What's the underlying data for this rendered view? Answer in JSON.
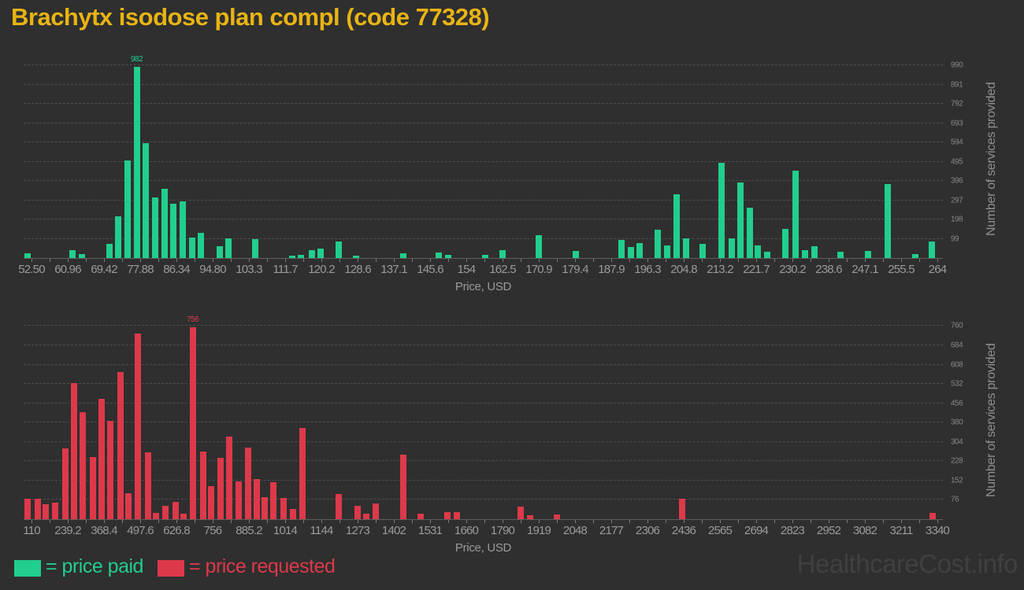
{
  "title": "Brachytx isodose plan compl (code 77328)",
  "watermark": "HealthcareCost.info",
  "colors": {
    "background": "#2f2f2f",
    "title": "#e8b414",
    "price_paid": "#21ce8d",
    "price_requested": "#dd394a",
    "axis_text": "#9a9a9a",
    "y_axis_text": "#868686",
    "gridline": "#4d4d4d"
  },
  "legend": {
    "items": [
      {
        "label": "= price paid",
        "color": "#21ce8d"
      },
      {
        "label": "= price requested",
        "color": "#dd394a"
      }
    ]
  },
  "chart_data": [
    {
      "type": "bar",
      "name": "price-paid-histogram",
      "series_name": "price paid",
      "color": "#21ce8d",
      "xlabel": "Price, USD",
      "ylabel": "Number of services provided",
      "peak_label": "982",
      "ymax_render": 1020,
      "x_tick_labels": [
        "52.50",
        "60.96",
        "69.42",
        "77.88",
        "86.34",
        "94.80",
        "103.3",
        "111.7",
        "120.2",
        "128.6",
        "137.1",
        "145.6",
        "154",
        "162.5",
        "170.9",
        "179.4",
        "187.9",
        "196.3",
        "204.8",
        "213.2",
        "221.7",
        "230.2",
        "238.6",
        "247.1",
        "255.5",
        "264"
      ],
      "y_ticks": [
        99,
        198,
        297,
        396,
        495,
        594,
        693,
        792,
        891,
        990
      ],
      "bars": [
        [
          0.4,
          26
        ],
        [
          5.3,
          39
        ],
        [
          6.3,
          20
        ],
        [
          9.3,
          72
        ],
        [
          10.3,
          215
        ],
        [
          11.3,
          500
        ],
        [
          12.3,
          982
        ],
        [
          13.3,
          592
        ],
        [
          14.3,
          310
        ],
        [
          15.3,
          355
        ],
        [
          16.3,
          280
        ],
        [
          17.3,
          290
        ],
        [
          18.3,
          105
        ],
        [
          19.3,
          130
        ],
        [
          21.3,
          60
        ],
        [
          22.3,
          100
        ],
        [
          25.2,
          98
        ],
        [
          29.2,
          13
        ],
        [
          30.2,
          17
        ],
        [
          31.4,
          39
        ],
        [
          32.3,
          47
        ],
        [
          34.3,
          87
        ],
        [
          36.2,
          11
        ],
        [
          41.3,
          25
        ],
        [
          45.2,
          30
        ],
        [
          46.2,
          15
        ],
        [
          50.2,
          18
        ],
        [
          52.1,
          40
        ],
        [
          56.0,
          118
        ],
        [
          60.1,
          35
        ],
        [
          65.0,
          92
        ],
        [
          66.1,
          58
        ],
        [
          67.0,
          75
        ],
        [
          69.0,
          145
        ],
        [
          70.0,
          66
        ],
        [
          71.0,
          326
        ],
        [
          72.1,
          100
        ],
        [
          73.9,
          73
        ],
        [
          75.9,
          491
        ],
        [
          77.0,
          100
        ],
        [
          78.0,
          390
        ],
        [
          79.0,
          259
        ],
        [
          79.9,
          66
        ],
        [
          80.9,
          34
        ],
        [
          82.9,
          148
        ],
        [
          84.0,
          448
        ],
        [
          85.0,
          40
        ],
        [
          86.0,
          60
        ],
        [
          88.9,
          34
        ],
        [
          91.9,
          38
        ],
        [
          94.0,
          380
        ],
        [
          97.0,
          22
        ],
        [
          98.8,
          86
        ]
      ]
    },
    {
      "type": "bar",
      "name": "price-requested-histogram",
      "series_name": "price requested",
      "color": "#dd394a",
      "xlabel": "Price, USD",
      "ylabel": "Number of services provided",
      "peak_label": "756",
      "ymax_render": 780,
      "x_tick_labels": [
        "110",
        "239.2",
        "368.4",
        "497.6",
        "626.8",
        "756",
        "885.2",
        "1014",
        "1144",
        "1273",
        "1402",
        "1531",
        "1660",
        "1790",
        "1919",
        "2048",
        "2177",
        "2306",
        "2436",
        "2565",
        "2694",
        "2823",
        "2952",
        "3082",
        "3211",
        "3340"
      ],
      "y_ticks": [
        76,
        152,
        228,
        304,
        380,
        456,
        532,
        608,
        684,
        760
      ],
      "bars": [
        [
          0.4,
          82
        ],
        [
          1.5,
          82
        ],
        [
          2.4,
          58
        ],
        [
          3.4,
          65
        ],
        [
          4.5,
          280
        ],
        [
          5.5,
          537
        ],
        [
          6.4,
          422
        ],
        [
          7.5,
          245
        ],
        [
          8.5,
          473
        ],
        [
          9.4,
          388
        ],
        [
          10.5,
          580
        ],
        [
          11.4,
          102
        ],
        [
          12.4,
          732
        ],
        [
          13.5,
          262
        ],
        [
          14.4,
          25
        ],
        [
          15.4,
          53
        ],
        [
          16.5,
          67
        ],
        [
          17.4,
          22
        ],
        [
          18.4,
          756
        ],
        [
          19.5,
          265
        ],
        [
          20.4,
          130
        ],
        [
          21.4,
          243
        ],
        [
          22.4,
          325
        ],
        [
          23.4,
          150
        ],
        [
          24.4,
          282
        ],
        [
          25.4,
          157
        ],
        [
          26.2,
          87
        ],
        [
          27.2,
          145
        ],
        [
          28.3,
          85
        ],
        [
          29.3,
          40
        ],
        [
          30.3,
          358
        ],
        [
          34.3,
          98
        ],
        [
          36.3,
          53
        ],
        [
          37.3,
          23
        ],
        [
          38.3,
          63
        ],
        [
          41.3,
          255
        ],
        [
          43.2,
          23
        ],
        [
          46.1,
          28
        ],
        [
          47.1,
          27
        ],
        [
          54.1,
          50
        ],
        [
          55.1,
          15
        ],
        [
          58.0,
          18
        ],
        [
          71.6,
          81
        ],
        [
          98.9,
          25
        ]
      ]
    }
  ]
}
